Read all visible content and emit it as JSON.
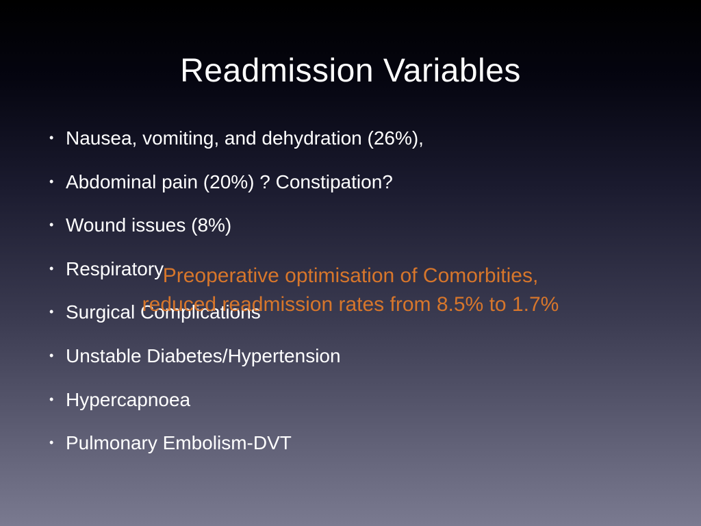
{
  "slide": {
    "title": "Readmission Variables",
    "bullets": [
      "Nausea, vomiting, and dehydration (26%),",
      "Abdominal pain (20%) ? Constipation?",
      "Wound issues (8%)",
      "Respiratory",
      "Surgical Complications",
      "Unstable Diabetes/Hypertension",
      "Hypercapnoea",
      "Pulmonary Embolism-DVT"
    ],
    "overlay": {
      "line1": "Preoperative optimisation of Comorbities,",
      "line2": "reduced readmission rates from 8.5% to 1.7%",
      "color": "#e07a2a"
    },
    "title_fontsize": 48,
    "bullet_fontsize": 28,
    "overlay_fontsize": 30,
    "background_gradient": [
      "#000000",
      "#7a7a90"
    ],
    "text_color": "#ffffff"
  }
}
